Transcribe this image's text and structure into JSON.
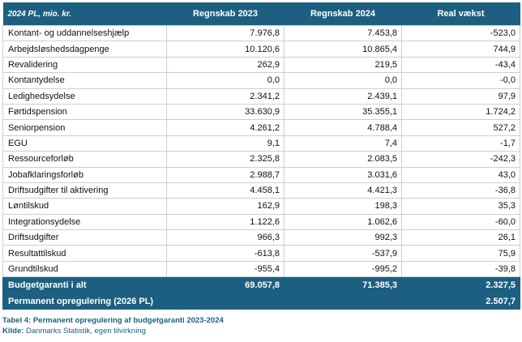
{
  "table": {
    "headers": [
      "2024 PL, mio. kr.",
      "Regnskab 2023",
      "Regnskab 2024",
      "Real vækst"
    ],
    "rows": [
      [
        "Kontant- og uddannelseshjælp",
        "7.976,8",
        "7.453,8",
        "-523,0"
      ],
      [
        "Arbejdsløshedsdagpenge",
        "10.120,6",
        "10.865,4",
        "744,9"
      ],
      [
        "Revalidering",
        "262,9",
        "219,5",
        "-43,4"
      ],
      [
        "Kontantydelse",
        "0,0",
        "0,0",
        "-0,0"
      ],
      [
        "Ledighedsydelse",
        "2.341,2",
        "2.439,1",
        "97,9"
      ],
      [
        "Førtidspension",
        "33.630,9",
        "35.355,1",
        "1.724,2"
      ],
      [
        "Seniorpension",
        "4.261,2",
        "4.788,4",
        "527,2"
      ],
      [
        "EGU",
        "9,1",
        "7,4",
        "-1,7"
      ],
      [
        "Ressourceforløb",
        "2.325,8",
        "2.083,5",
        "-242,3"
      ],
      [
        "Jobafklaringsforløb",
        "2.988,7",
        "3.031,6",
        "43,0"
      ],
      [
        "Driftsudgifter til aktivering",
        "4.458,1",
        "4.421,3",
        "-36,8"
      ],
      [
        "Løntilskud",
        "162,9",
        "198,3",
        "35,3"
      ],
      [
        "Integrationsydelse",
        "1.122,6",
        "1.062,6",
        "-60,0"
      ],
      [
        "Driftsudgifter",
        "966,3",
        "992,3",
        "26,1"
      ],
      [
        "Resultattilskud",
        "-613,8",
        "-537,9",
        "75,9"
      ],
      [
        "Grundtilskud",
        "-955,4",
        "-995,2",
        "-39,8"
      ]
    ],
    "total": [
      "Budgetgaranti i alt",
      "69.057,8",
      "71.385,3",
      "2.327,5"
    ],
    "adjustment": [
      "Permanent opregulering (2026 PL)",
      "",
      "",
      "2.507,7"
    ]
  },
  "caption": {
    "title": "Tabel 4: Permanent opregulering af budgetgaranti 2023-2024",
    "source_label": "Kilde:",
    "source": "Danmarks Statistik, egen tilvirkning"
  },
  "colors": {
    "header_bg": "#1d5f80",
    "border": "#c8d0d6"
  }
}
